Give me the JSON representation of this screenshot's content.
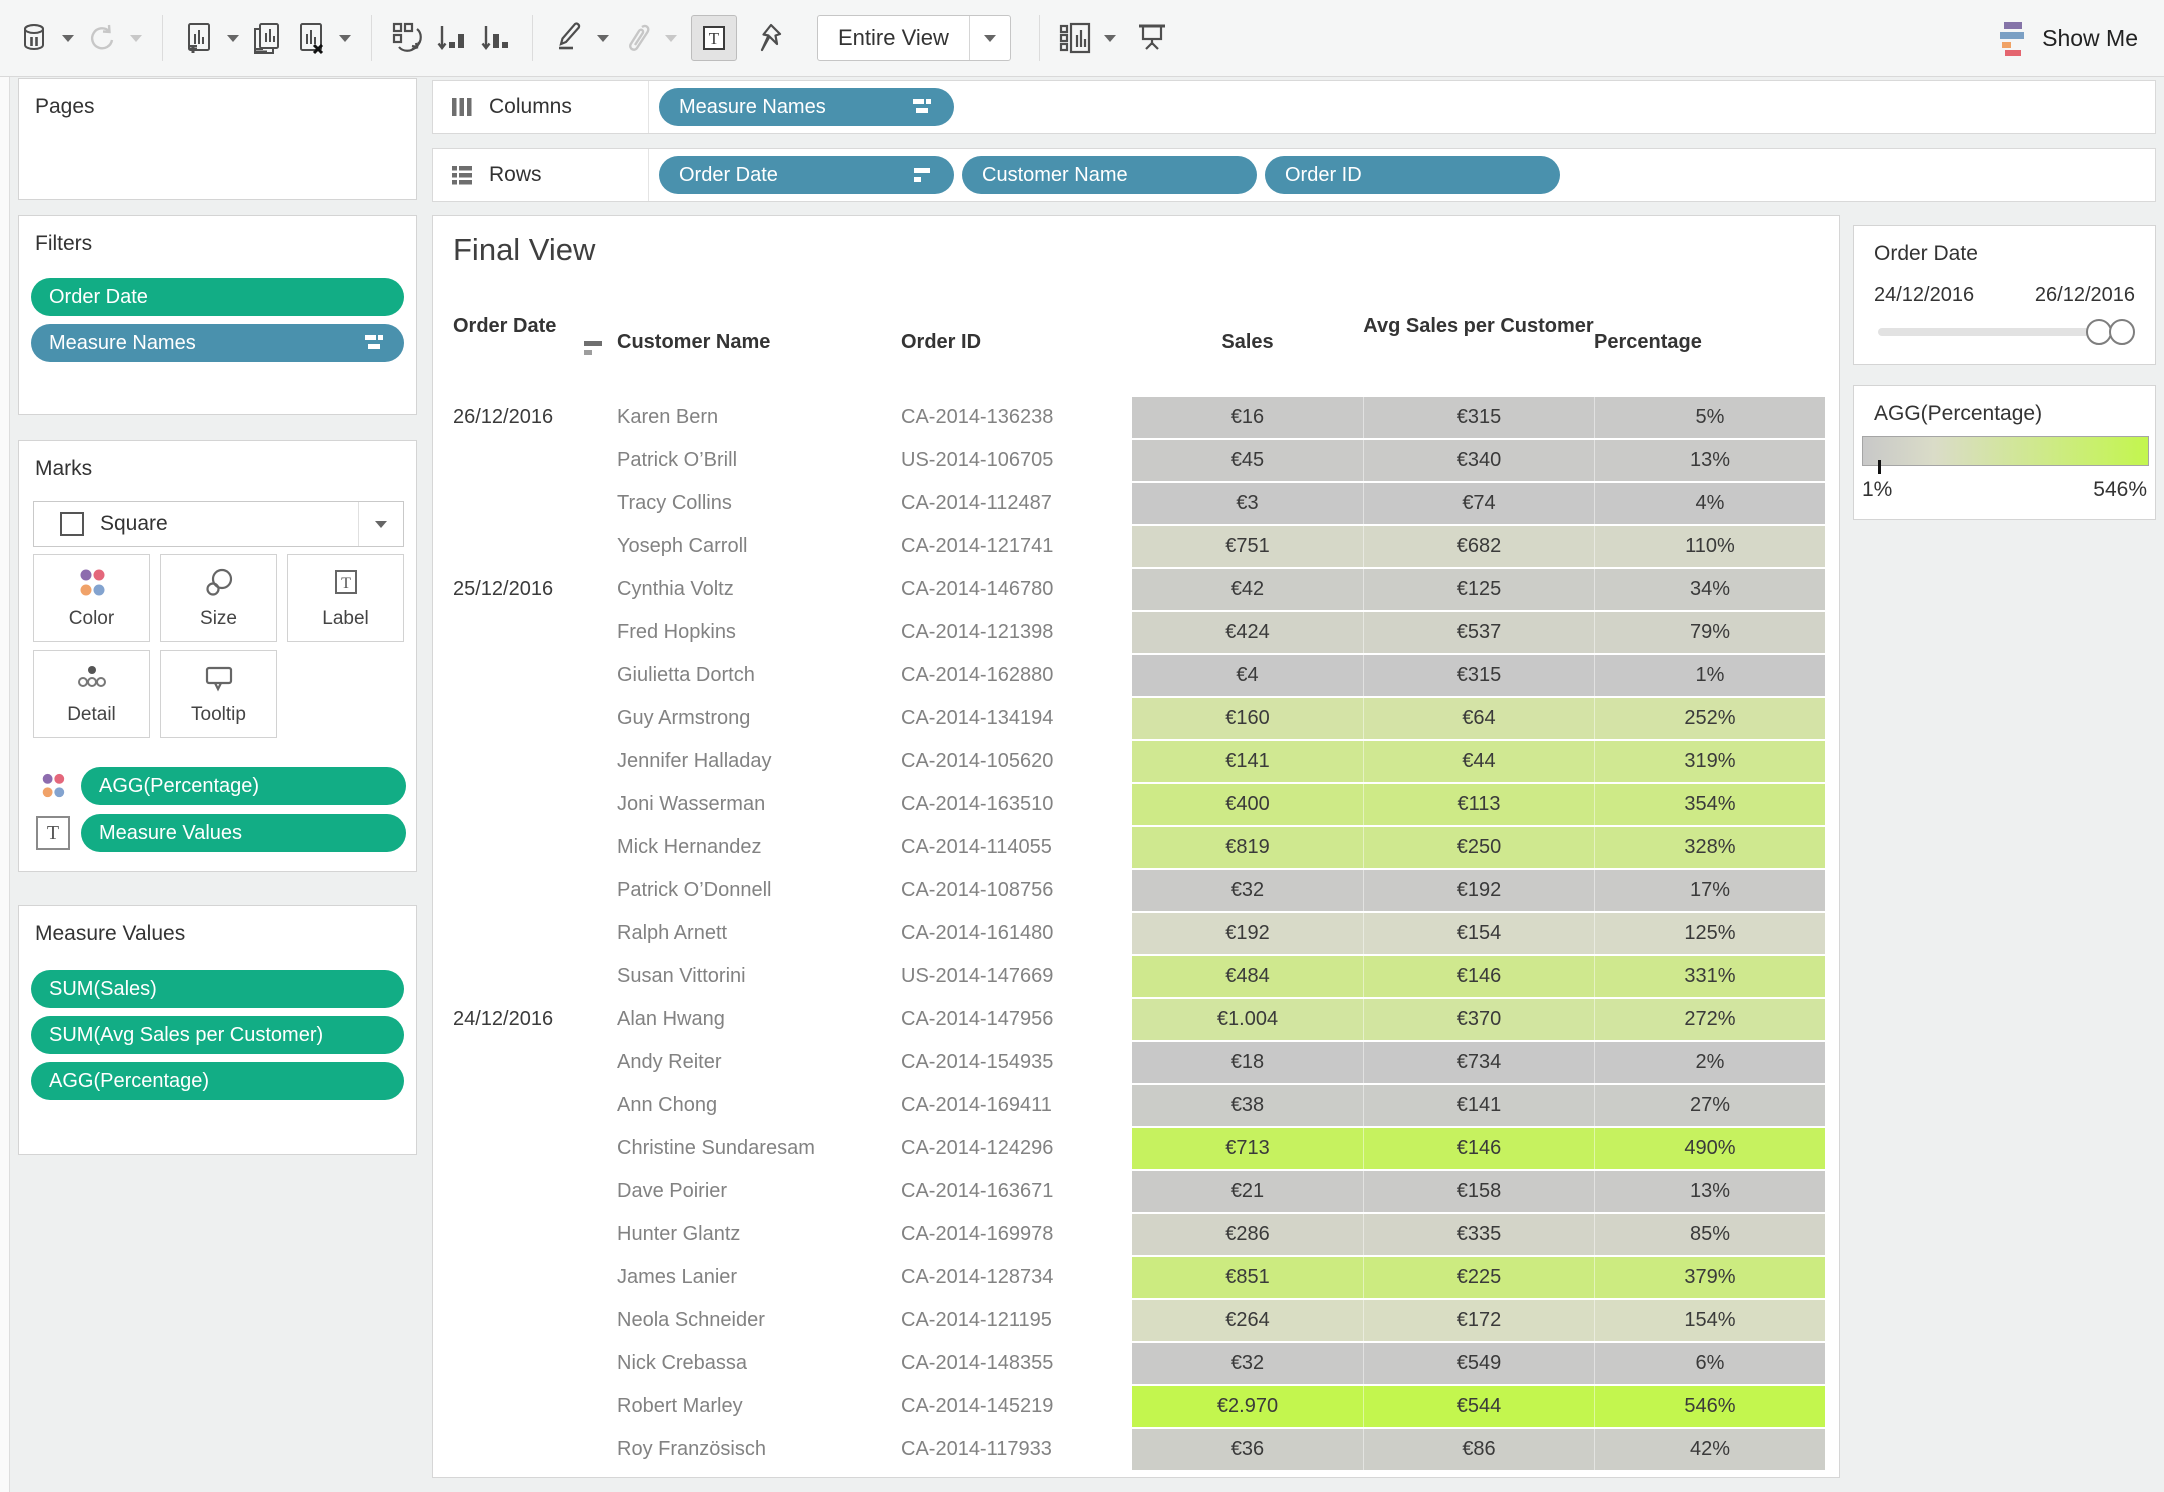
{
  "toolbar": {
    "entire_view_label": "Entire View",
    "show_me_label": "Show Me"
  },
  "shelves": {
    "columns_label": "Columns",
    "rows_label": "Rows",
    "columns_pills": [
      {
        "label": "Measure Names",
        "icon": "measure-names-icon"
      }
    ],
    "rows_pills": [
      {
        "label": "Order Date",
        "icon": "sort-descending-icon"
      },
      {
        "label": "Customer Name"
      },
      {
        "label": "Order ID"
      }
    ]
  },
  "pages": {
    "title": "Pages"
  },
  "filters": {
    "title": "Filters",
    "pills": [
      {
        "label": "Order Date",
        "color": "green"
      },
      {
        "label": "Measure Names",
        "color": "blue",
        "icon": "measure-names-icon"
      }
    ]
  },
  "marks": {
    "title": "Marks",
    "mark_type": "Square",
    "buttons": [
      {
        "label": "Color"
      },
      {
        "label": "Size"
      },
      {
        "label": "Label"
      },
      {
        "label": "Detail"
      },
      {
        "label": "Tooltip"
      }
    ],
    "pills": [
      {
        "label": "AGG(Percentage)",
        "icon": "color-icon"
      },
      {
        "label": "Measure Values",
        "icon": "text-icon"
      }
    ]
  },
  "measure_values": {
    "title": "Measure Values",
    "pills": [
      {
        "label": "SUM(Sales)"
      },
      {
        "label": "SUM(Avg Sales per Customer)"
      },
      {
        "label": "AGG(Percentage)"
      }
    ]
  },
  "view": {
    "title": "Final View"
  },
  "table": {
    "headers": [
      "Order Date",
      "Customer Name",
      "Order ID",
      "Sales",
      "Avg Sales per Customer",
      "Percentage"
    ],
    "rows": [
      {
        "date": "26/12/2016",
        "customer": "Karen Bern",
        "order_id": "CA-2014-136238",
        "sales": "€16",
        "avg": "€315",
        "pct": "5%"
      },
      {
        "date": "",
        "customer": "Patrick O’Brill",
        "order_id": "US-2014-106705",
        "sales": "€45",
        "avg": "€340",
        "pct": "13%"
      },
      {
        "date": "",
        "customer": "Tracy Collins",
        "order_id": "CA-2014-112487",
        "sales": "€3",
        "avg": "€74",
        "pct": "4%"
      },
      {
        "date": "",
        "customer": "Yoseph Carroll",
        "order_id": "CA-2014-121741",
        "sales": "€751",
        "avg": "€682",
        "pct": "110%"
      },
      {
        "date": "25/12/2016",
        "customer": "Cynthia Voltz",
        "order_id": "CA-2014-146780",
        "sales": "€42",
        "avg": "€125",
        "pct": "34%"
      },
      {
        "date": "",
        "customer": "Fred Hopkins",
        "order_id": "CA-2014-121398",
        "sales": "€424",
        "avg": "€537",
        "pct": "79%"
      },
      {
        "date": "",
        "customer": "Giulietta Dortch",
        "order_id": "CA-2014-162880",
        "sales": "€4",
        "avg": "€315",
        "pct": "1%"
      },
      {
        "date": "",
        "customer": "Guy Armstrong",
        "order_id": "CA-2014-134194",
        "sales": "€160",
        "avg": "€64",
        "pct": "252%"
      },
      {
        "date": "",
        "customer": "Jennifer Halladay",
        "order_id": "CA-2014-105620",
        "sales": "€141",
        "avg": "€44",
        "pct": "319%"
      },
      {
        "date": "",
        "customer": "Joni Wasserman",
        "order_id": "CA-2014-163510",
        "sales": "€400",
        "avg": "€113",
        "pct": "354%"
      },
      {
        "date": "",
        "customer": "Mick Hernandez",
        "order_id": "CA-2014-114055",
        "sales": "€819",
        "avg": "€250",
        "pct": "328%"
      },
      {
        "date": "",
        "customer": "Patrick O’Donnell",
        "order_id": "CA-2014-108756",
        "sales": "€32",
        "avg": "€192",
        "pct": "17%"
      },
      {
        "date": "",
        "customer": "Ralph Arnett",
        "order_id": "CA-2014-161480",
        "sales": "€192",
        "avg": "€154",
        "pct": "125%"
      },
      {
        "date": "",
        "customer": "Susan Vittorini",
        "order_id": "US-2014-147669",
        "sales": "€484",
        "avg": "€146",
        "pct": "331%"
      },
      {
        "date": "24/12/2016",
        "customer": "Alan Hwang",
        "order_id": "CA-2014-147956",
        "sales": "€1.004",
        "avg": "€370",
        "pct": "272%"
      },
      {
        "date": "",
        "customer": "Andy Reiter",
        "order_id": "CA-2014-154935",
        "sales": "€18",
        "avg": "€734",
        "pct": "2%"
      },
      {
        "date": "",
        "customer": "Ann Chong",
        "order_id": "CA-2014-169411",
        "sales": "€38",
        "avg": "€141",
        "pct": "27%"
      },
      {
        "date": "",
        "customer": "Christine Sundaresam",
        "order_id": "CA-2014-124296",
        "sales": "€713",
        "avg": "€146",
        "pct": "490%"
      },
      {
        "date": "",
        "customer": "Dave Poirier",
        "order_id": "CA-2014-163671",
        "sales": "€21",
        "avg": "€158",
        "pct": "13%"
      },
      {
        "date": "",
        "customer": "Hunter Glantz",
        "order_id": "CA-2014-169978",
        "sales": "€286",
        "avg": "€335",
        "pct": "85%"
      },
      {
        "date": "",
        "customer": "James Lanier",
        "order_id": "CA-2014-128734",
        "sales": "€851",
        "avg": "€225",
        "pct": "379%"
      },
      {
        "date": "",
        "customer": "Neola Schneider",
        "order_id": "CA-2014-121195",
        "sales": "€264",
        "avg": "€172",
        "pct": "154%"
      },
      {
        "date": "",
        "customer": "Nick Crebassa",
        "order_id": "CA-2014-148355",
        "sales": "€32",
        "avg": "€549",
        "pct": "6%"
      },
      {
        "date": "",
        "customer": "Robert Marley",
        "order_id": "CA-2014-145219",
        "sales": "€2.970",
        "avg": "€544",
        "pct": "546%"
      },
      {
        "date": "",
        "customer": "Roy Französisch",
        "order_id": "CA-2014-117933",
        "sales": "€36",
        "avg": "€86",
        "pct": "42%"
      }
    ]
  },
  "date_legend": {
    "title": "Order Date",
    "start": "24/12/2016",
    "end": "26/12/2016"
  },
  "color_legend": {
    "title": "AGG(Percentage)",
    "min": "1%",
    "max": "546%",
    "min_value": 1,
    "max_value": 546
  },
  "colors": {
    "pill_green": "#12ad85",
    "pill_blue": "#4a91ad",
    "gradient_low": "#c8c8c8",
    "gradient_mid": "#dadcc8",
    "gradient_high": "#c3f64e"
  }
}
